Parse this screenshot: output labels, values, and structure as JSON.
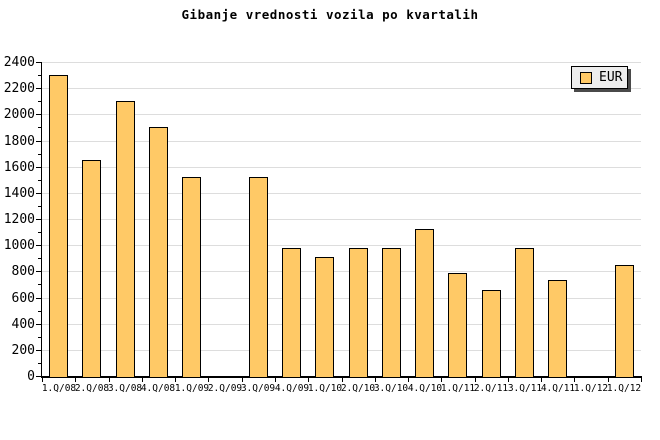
{
  "title": "Gibanje vrednosti vozila po kvartalih",
  "legend": {
    "label": "EUR",
    "swatch_color": "#FFC966",
    "background": "#EDEDED",
    "border_color": "#000000",
    "shadow_color": "#4A4A4A"
  },
  "colors": {
    "background": "#FFFFFF",
    "bar_fill": "#FFC966",
    "bar_border": "#000000",
    "grid": "#DDDDDD",
    "axis": "#000000",
    "text": "#000000"
  },
  "chart_data": {
    "type": "bar",
    "title": "Gibanje vrednosti vozila po kvartalih",
    "series": [
      {
        "name": "EUR",
        "values": [
          2300,
          1650,
          2100,
          1900,
          1520,
          0,
          1520,
          980,
          910,
          980,
          980,
          1120,
          790,
          660,
          980,
          730,
          0,
          850
        ]
      }
    ],
    "categories": [
      "1.Q/08",
      "2.Q/08",
      "3.Q/08",
      "4.Q/08",
      "1.Q/09",
      "2.Q/09",
      "3.Q/09",
      "4.Q/09",
      "1.Q/10",
      "2.Q/10",
      "3.Q/10",
      "4.Q/10",
      "1.Q/11",
      "2.Q/11",
      "3.Q/11",
      "4.Q/11",
      "1.Q/12",
      "1.Q/12"
    ],
    "xlabel": "",
    "ylabel": "",
    "ylim": [
      0,
      2400
    ],
    "y_major_step": 200,
    "y_minor_step": 100,
    "y_tick_labels": [
      "0",
      "200",
      "400",
      "600",
      "800",
      "1000",
      "1200",
      "1400",
      "1600",
      "1800",
      "2000",
      "2200",
      "2400"
    ],
    "grid": "horizontal",
    "legend_position": "top-right",
    "missing_bars_note": "no bar drawn for 2.Q/09 and first 1.Q/12 (value 0)"
  }
}
